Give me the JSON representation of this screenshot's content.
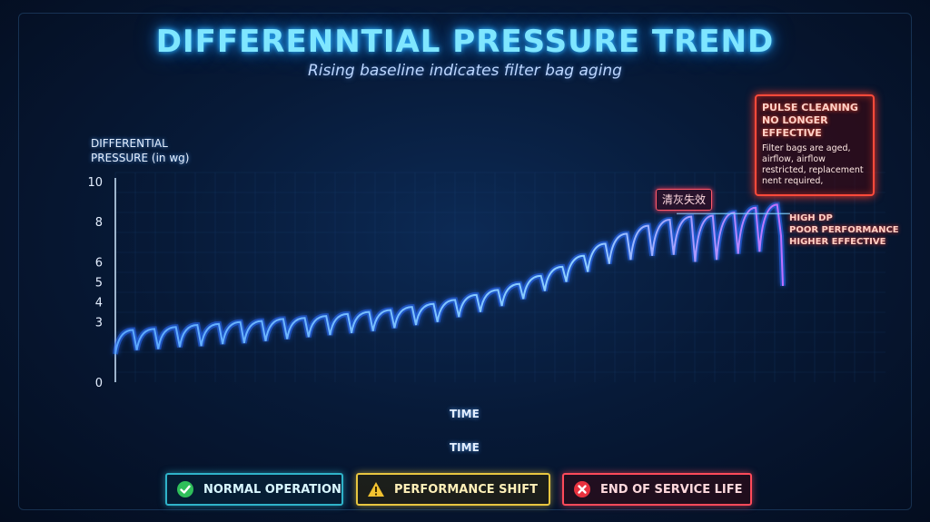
{
  "header": {
    "title": "DIFFERENNTIAL PRESSURE TREND",
    "subtitle": "Rising baseline indicates filter bag aging"
  },
  "chart_data": {
    "type": "line",
    "title": "DIFFERENNTIAL PRESSURE TREND",
    "subtitle": "Rising baseline indicates filter bag aging",
    "ylabel": "DIFFERENTIAL\nPRESSURE (in wg)",
    "xlabel": "TIME",
    "xlabel_secondary": "TIME",
    "yticks": [
      0,
      3,
      4,
      5,
      6,
      8,
      10
    ],
    "ylim": [
      0,
      10
    ],
    "grid": true,
    "series": [
      {
        "peaks": [
          2.6,
          2.65,
          2.75,
          2.85,
          2.9,
          3.0,
          3.05,
          3.15,
          3.2,
          3.3,
          3.4,
          3.5,
          3.6,
          3.75,
          3.9,
          4.1,
          4.35,
          4.6,
          4.9,
          5.3,
          5.75,
          6.3,
          6.9,
          7.4,
          7.8,
          8.1,
          8.25,
          8.3,
          8.45,
          8.7,
          8.85
        ],
        "troughs": [
          1.5,
          1.6,
          1.65,
          1.75,
          1.8,
          1.9,
          1.95,
          2.05,
          2.15,
          2.25,
          2.35,
          2.45,
          2.55,
          2.7,
          2.85,
          3.0,
          3.25,
          3.5,
          3.8,
          4.15,
          4.55,
          5.0,
          5.5,
          5.9,
          6.1,
          6.3,
          6.35,
          6.0,
          6.1,
          6.4,
          6.5
        ],
        "start": 1.4
      }
    ]
  },
  "annotations": {
    "callout_title": "PULSE CLEANING\nNO LONGER\nEFFECTIVE",
    "callout_body": "Filter bags are aged,\nairflow, airflow\nrestricted, replacement\nnent required,",
    "cn_tag": "清灰失效",
    "side_note": "HIGH DP\nPOOR PERFORMANCE\nHIGHER EFFECTIVE"
  },
  "legend": {
    "normal": "NORMAL OPERATION",
    "shift": "PERFORMANCE SHIFT",
    "end": "END OF SERVICE LIFE"
  },
  "colors": {
    "line": "#6ab8ff",
    "glow": "#2a6dff",
    "accent_end": "#c070ff",
    "normal": "#2fb3c9",
    "shift": "#e8c640",
    "end": "#ff4a5a"
  },
  "icons": {
    "normal": "check-icon",
    "shift": "warning-icon",
    "end": "close-icon"
  }
}
